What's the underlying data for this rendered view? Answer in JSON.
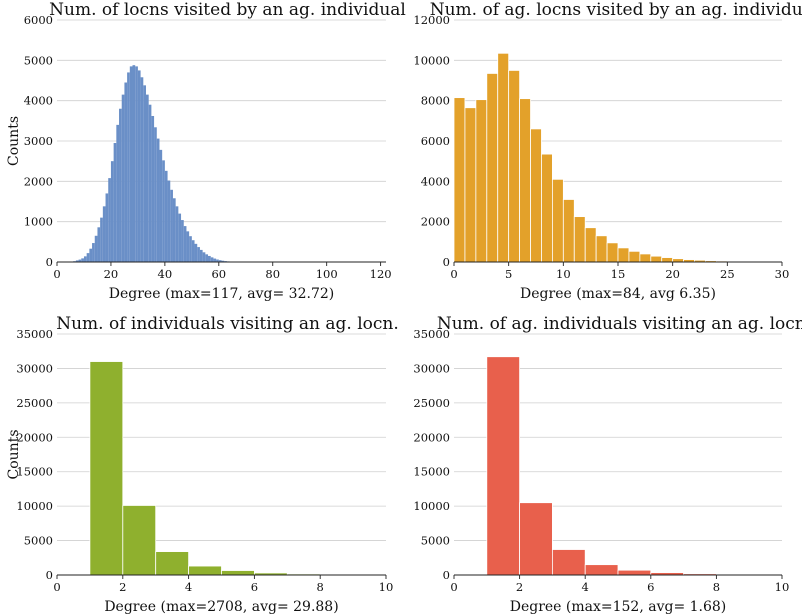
{
  "chart_data": [
    {
      "type": "bar",
      "title": "Num. of locns visited by an ag. individual",
      "xlabel": "Degree (max=117, avg= 32.72)",
      "ylabel": "Counts",
      "xlim": [
        0,
        122
      ],
      "ylim": [
        0,
        6000
      ],
      "xticks": [
        0,
        20,
        40,
        60,
        80,
        100,
        120
      ],
      "yticks": [
        0,
        1000,
        2000,
        3000,
        4000,
        5000,
        6000
      ],
      "color": "#6a8fc7",
      "bin_width": 1,
      "x": [
        1,
        2,
        3,
        4,
        5,
        6,
        7,
        8,
        9,
        10,
        11,
        12,
        13,
        14,
        15,
        16,
        17,
        18,
        19,
        20,
        21,
        22,
        23,
        24,
        25,
        26,
        27,
        28,
        29,
        30,
        31,
        32,
        33,
        34,
        35,
        36,
        37,
        38,
        39,
        40,
        41,
        42,
        43,
        44,
        45,
        46,
        47,
        48,
        49,
        50,
        51,
        52,
        53,
        54,
        55,
        56,
        57,
        58,
        59,
        60,
        61,
        62,
        63,
        64,
        65,
        66,
        67,
        68,
        69,
        70,
        71,
        72,
        73,
        74,
        75,
        76,
        77,
        78,
        79,
        80
      ],
      "values": [
        0,
        0,
        0,
        5,
        10,
        20,
        40,
        60,
        90,
        140,
        220,
        330,
        470,
        650,
        860,
        1100,
        1380,
        1700,
        2080,
        2500,
        2950,
        3400,
        3800,
        4150,
        4450,
        4700,
        4850,
        4880,
        4850,
        4750,
        4580,
        4380,
        4150,
        3900,
        3620,
        3340,
        3060,
        2780,
        2520,
        2260,
        2020,
        1790,
        1580,
        1380,
        1200,
        1040,
        890,
        760,
        640,
        540,
        450,
        370,
        300,
        240,
        190,
        150,
        115,
        85,
        62,
        45,
        32,
        22,
        15,
        10,
        7,
        5,
        3,
        2,
        1,
        1,
        0,
        0,
        0,
        0,
        0,
        0,
        0,
        0,
        0,
        0
      ]
    },
    {
      "type": "bar",
      "title": "Num. of ag. locns visited by an ag. individual",
      "xlabel": "Degree (max=84, avg 6.35)",
      "ylabel": "",
      "xlim": [
        0,
        30
      ],
      "ylim": [
        0,
        12000
      ],
      "xticks": [
        0,
        5,
        10,
        15,
        20,
        25,
        30
      ],
      "yticks": [
        0,
        2000,
        4000,
        6000,
        8000,
        10000,
        12000
      ],
      "color": "#e3a12a",
      "bin_width": 1,
      "x": [
        0,
        1,
        2,
        3,
        4,
        5,
        6,
        7,
        8,
        9,
        10,
        11,
        12,
        13,
        14,
        15,
        16,
        17,
        18,
        19,
        20,
        21,
        22,
        23,
        24,
        25,
        26,
        27,
        28,
        29
      ],
      "values": [
        8150,
        7650,
        8050,
        9350,
        10350,
        9500,
        8100,
        6600,
        5350,
        4100,
        3100,
        2250,
        1700,
        1300,
        950,
        700,
        530,
        400,
        290,
        220,
        165,
        120,
        90,
        65,
        50,
        35,
        25,
        18,
        12,
        8
      ]
    },
    {
      "type": "bar",
      "title": "Num. of individuals visiting an ag. locn.",
      "xlabel": "Degree (max=2708, avg= 29.88)",
      "ylabel": "Counts",
      "xlim": [
        0,
        10
      ],
      "ylim": [
        0,
        35000
      ],
      "xticks": [
        0,
        2,
        4,
        6,
        8,
        10
      ],
      "yticks": [
        0,
        5000,
        10000,
        15000,
        20000,
        25000,
        30000,
        35000
      ],
      "color": "#8fb02e",
      "bin_width": 1,
      "x": [
        1,
        2,
        3,
        4,
        5,
        6,
        7,
        8,
        9
      ],
      "values": [
        31000,
        10100,
        3400,
        1300,
        650,
        300,
        150,
        80,
        40
      ]
    },
    {
      "type": "bar",
      "title": "Num. of ag. individuals visiting an ag. locn.",
      "xlabel": "Degree (max=152, avg= 1.68)",
      "ylabel": "",
      "xlim": [
        0,
        10
      ],
      "ylim": [
        0,
        35000
      ],
      "xticks": [
        0,
        2,
        4,
        6,
        8,
        10
      ],
      "yticks": [
        0,
        5000,
        10000,
        15000,
        20000,
        25000,
        30000,
        35000
      ],
      "color": "#e8604c",
      "bin_width": 1,
      "x": [
        1,
        2,
        3,
        4,
        5,
        6,
        7,
        8,
        9
      ],
      "values": [
        31700,
        10500,
        3700,
        1500,
        700,
        350,
        180,
        90,
        40
      ]
    }
  ]
}
